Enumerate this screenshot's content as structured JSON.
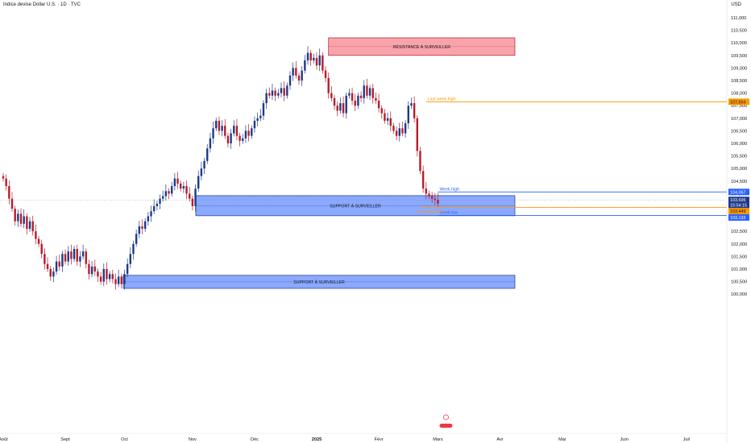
{
  "header": {
    "title": "Indice devise Dollar U.S. · 1D · TVC",
    "currency": "USD"
  },
  "chart_data": {
    "type": "candlestick",
    "y_ticks": [
      "111,000",
      "110,500",
      "110,000",
      "109,500",
      "109,000",
      "108,500",
      "108,000",
      "107,500",
      "107,000",
      "106,500",
      "106,000",
      "105,500",
      "105,000",
      "104,500",
      "104,000",
      "103,500",
      "103,000",
      "102,500",
      "102,000",
      "101,500",
      "101,000",
      "100,500",
      "100,000"
    ],
    "x_ticks": [
      {
        "label": "Août",
        "idx": 0
      },
      {
        "label": "Sept",
        "idx": 21
      },
      {
        "label": "Oct",
        "idx": 41
      },
      {
        "label": "Nov",
        "idx": 64
      },
      {
        "label": "Déc",
        "idx": 85
      },
      {
        "label": "2025",
        "idx": 106
      },
      {
        "label": "Févr",
        "idx": 127
      },
      {
        "label": "Mars",
        "idx": 147
      },
      {
        "label": "Avr",
        "idx": 168
      },
      {
        "label": "Mai",
        "idx": 189
      },
      {
        "label": "Juin",
        "idx": 210
      },
      {
        "label": "Juil",
        "idx": 231
      }
    ],
    "ylim": [
      99.8,
      111.4
    ],
    "closes": [
      104.6,
      104.3,
      103.8,
      103.4,
      102.9,
      103.2,
      102.8,
      103.1,
      102.6,
      102.9,
      102.5,
      102.2,
      102.0,
      101.6,
      101.2,
      101.0,
      100.7,
      100.9,
      101.3,
      101.1,
      101.6,
      101.3,
      101.7,
      101.4,
      101.8,
      101.3,
      101.5,
      101.7,
      101.2,
      100.8,
      101.1,
      100.9,
      100.7,
      100.5,
      101.0,
      100.6,
      100.8,
      100.6,
      100.4,
      100.7,
      100.4,
      100.8,
      101.2,
      101.6,
      102.0,
      102.4,
      102.7,
      102.6,
      102.9,
      103.1,
      103.3,
      103.5,
      103.6,
      103.8,
      103.9,
      104.1,
      104.0,
      104.3,
      104.6,
      104.4,
      104.2,
      104.3,
      104.0,
      103.8,
      103.5,
      104.2,
      104.7,
      105.0,
      105.3,
      105.8,
      106.2,
      106.6,
      106.9,
      106.5,
      106.7,
      106.3,
      106.0,
      106.4,
      106.7,
      106.3,
      106.1,
      106.2,
      106.5,
      106.3,
      106.6,
      106.9,
      107.0,
      107.1,
      107.6,
      108.0,
      107.9,
      108.1,
      107.9,
      108.0,
      108.2,
      107.9,
      108.3,
      108.7,
      109.0,
      108.7,
      108.5,
      108.9,
      109.3,
      109.6,
      109.3,
      109.4,
      109.1,
      109.5,
      108.9,
      108.6,
      108.0,
      107.8,
      107.5,
      107.3,
      107.6,
      107.2,
      107.9,
      108.0,
      107.7,
      107.5,
      107.9,
      107.8,
      108.3,
      107.9,
      108.2,
      107.8,
      107.7,
      107.4,
      107.2,
      106.9,
      107.0,
      106.7,
      106.5,
      106.3,
      106.6,
      106.4,
      106.8,
      107.5,
      107.6,
      107.0,
      105.7,
      104.9,
      104.2,
      104.0,
      103.9,
      103.8,
      103.75,
      103.6
    ],
    "levels": [
      {
        "price": "104,067",
        "label": "Week high",
        "color": "#2962ff"
      },
      {
        "price": "103,695",
        "label": "",
        "color": "#131722"
      },
      {
        "price": "15:54:15",
        "label": "",
        "color": "#131722"
      },
      {
        "price": "103,449",
        "label": "",
        "color": "#ff9800"
      },
      {
        "price": "103,132",
        "label": "Week low",
        "color": "#2962ff"
      },
      {
        "price": "107,654",
        "label": "Last week high",
        "color": "#ff9800"
      }
    ],
    "zones": [
      {
        "label": "RÉSISTANCE À SURVEILLER",
        "color": "#f23645"
      },
      {
        "label": "SUPPORT À SURVEILLER",
        "color": "#2962ff"
      },
      {
        "label": "SUPPORT À SURVEILLER",
        "color": "#2962ff"
      }
    ],
    "last_week_low_label": "Last week low",
    "up_color": "#1e3a8a",
    "down_color": "#b71c2c"
  }
}
